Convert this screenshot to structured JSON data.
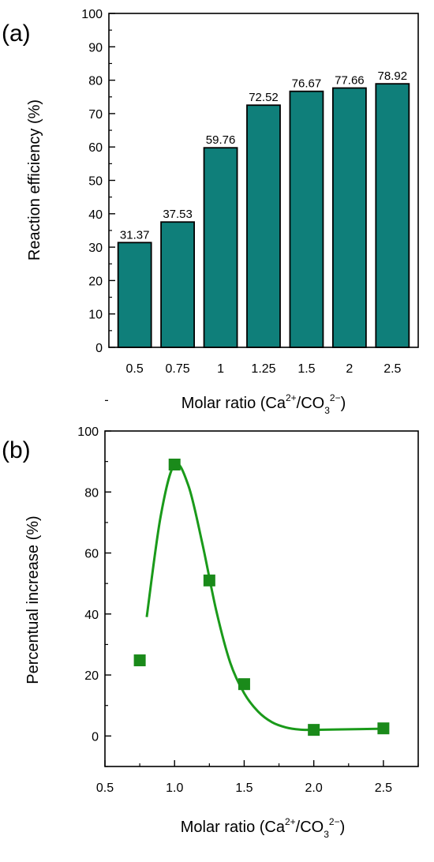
{
  "chart_data": [
    {
      "type": "bar",
      "panel_label": "(a)",
      "categories": [
        "0.5",
        "0.75",
        "1",
        "1.25",
        "1.5",
        "2",
        "2.5"
      ],
      "values": [
        31.37,
        37.53,
        59.76,
        72.52,
        76.67,
        77.66,
        78.92
      ],
      "data_labels": [
        "31.37",
        "37.53",
        "59.76",
        "72.52",
        "76.67",
        "77.66",
        "78.92"
      ],
      "bar_color": "#0f7f7a",
      "ylabel": "Reaction efficiency (%)",
      "xlabel": {
        "prefix": "Molar ratio (Ca",
        "sup1": "2+",
        "mid": "/CO",
        "sub": "3",
        "sup2": "2−",
        "suffix": ")"
      },
      "ylim": [
        0,
        100
      ],
      "yticks": [
        "0",
        "10",
        "20",
        "30",
        "40",
        "50",
        "60",
        "70",
        "80",
        "90",
        "100"
      ],
      "grid": false
    },
    {
      "type": "scatter",
      "panel_label": "(b)",
      "x": [
        0.75,
        1.0,
        1.25,
        1.5,
        2.0,
        2.5
      ],
      "y": [
        24.8,
        89.0,
        51.0,
        17.0,
        2.0,
        2.5
      ],
      "marker_color": "#1a8a1a",
      "trend_line": {
        "x": [
          0.8,
          0.9,
          1.0,
          1.1,
          1.2,
          1.3,
          1.4,
          1.5,
          1.6,
          1.7,
          1.8,
          1.9,
          2.0,
          2.25,
          2.5
        ],
        "y": [
          39,
          72,
          89,
          82,
          63,
          41,
          24,
          14,
          8,
          4.5,
          2.8,
          2.1,
          2.0,
          2.2,
          2.4
        ]
      },
      "ylabel": "Percentual increase (%)",
      "xlabel": {
        "prefix": "Molar ratio (Ca",
        "sup1": "2+",
        "mid": "/CO",
        "sub": "3",
        "sup2": "2−",
        "suffix": ")"
      },
      "xlim": [
        0.5,
        2.75
      ],
      "ylim": [
        -10,
        100
      ],
      "xticks": [
        "0.5",
        "1.0",
        "1.5",
        "2.0",
        "2.5"
      ],
      "yticks": [
        "0",
        "20",
        "40",
        "60",
        "80",
        "100"
      ],
      "grid": false
    }
  ]
}
